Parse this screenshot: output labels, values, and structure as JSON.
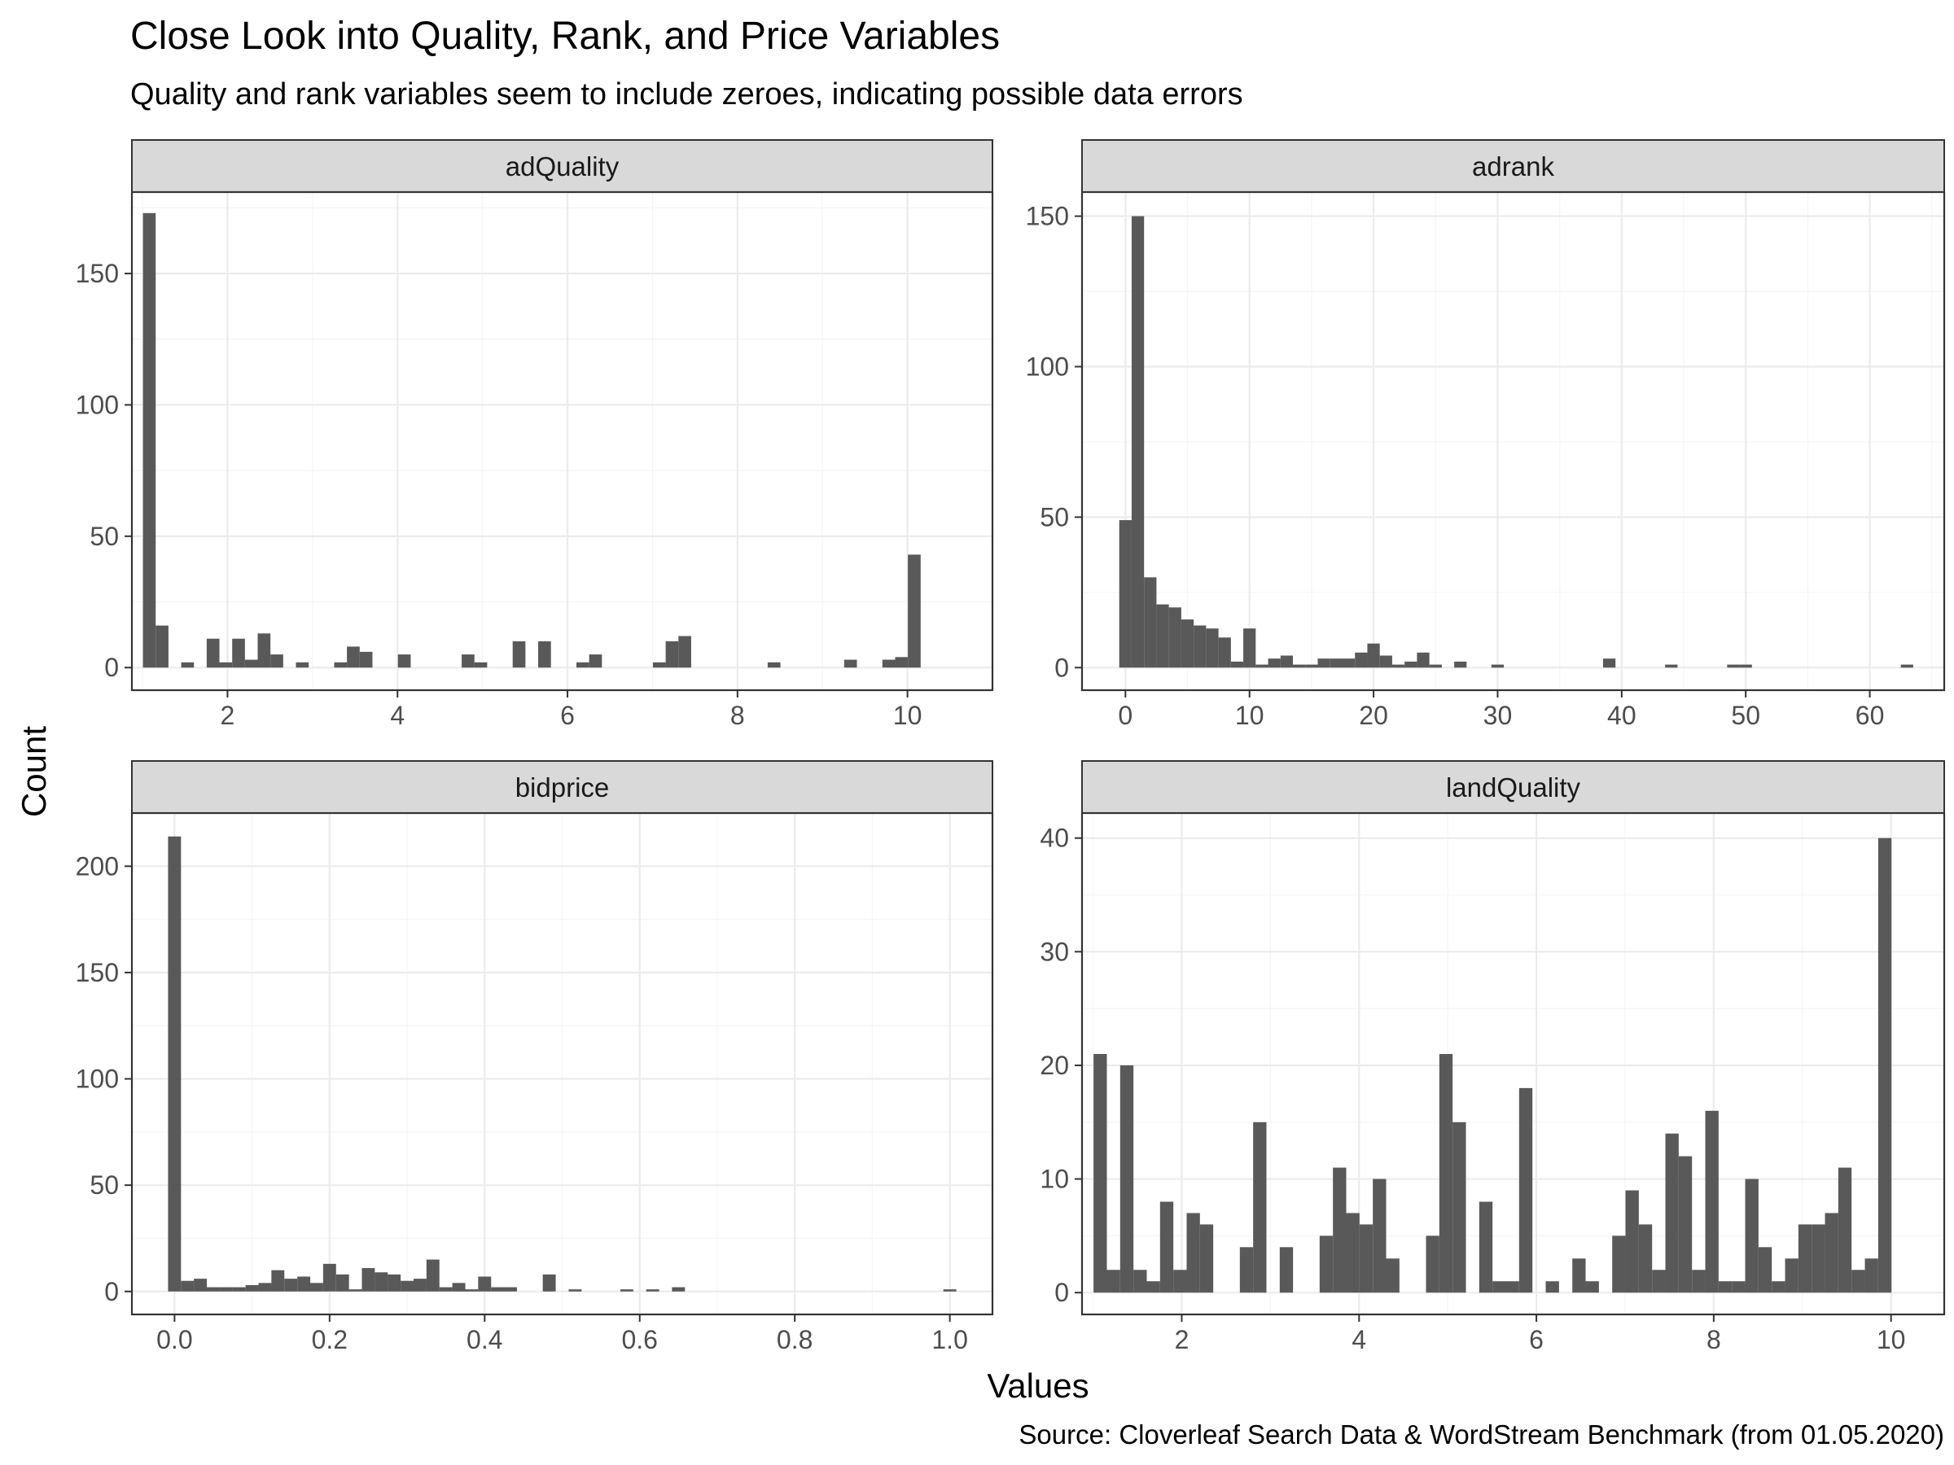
{
  "title": "Close Look into Quality, Rank, and Price Variables",
  "subtitle": "Quality and rank variables seem to include zeroes, indicating possible data errors",
  "caption": "Source: Cloverleaf Search Data & WordStream Benchmark (from 01.05.2020)",
  "xlabel": "Values",
  "ylabel": "Count",
  "colors": {
    "bar": "#595959",
    "strip_fill": "#d9d9d9",
    "grid_major": "#ebebeb",
    "grid_minor": "#f5f5f5",
    "border": "#333333"
  },
  "chart_data": [
    {
      "type": "bar",
      "facet": "adQuality",
      "xlim": [
        0.875,
        11.0
      ],
      "ylim": [
        -8.6,
        181
      ],
      "xticks": [
        2,
        4,
        6,
        8,
        10
      ],
      "xtick_labels": [
        "2",
        "4",
        "6",
        "8",
        "10"
      ],
      "yticks": [
        0,
        50,
        100,
        150
      ],
      "ytick_labels": [
        "0",
        "50",
        "100",
        "150"
      ],
      "bin_width": 0.15,
      "bins": [
        {
          "x": 1.08,
          "count": 173
        },
        {
          "x": 1.23,
          "count": 16
        },
        {
          "x": 1.53,
          "count": 2
        },
        {
          "x": 1.83,
          "count": 11
        },
        {
          "x": 1.98,
          "count": 2
        },
        {
          "x": 2.13,
          "count": 11
        },
        {
          "x": 2.28,
          "count": 3
        },
        {
          "x": 2.43,
          "count": 13
        },
        {
          "x": 2.58,
          "count": 5
        },
        {
          "x": 2.88,
          "count": 2
        },
        {
          "x": 3.33,
          "count": 2
        },
        {
          "x": 3.48,
          "count": 8
        },
        {
          "x": 3.63,
          "count": 6
        },
        {
          "x": 4.08,
          "count": 5
        },
        {
          "x": 4.83,
          "count": 5
        },
        {
          "x": 4.98,
          "count": 2
        },
        {
          "x": 5.43,
          "count": 10
        },
        {
          "x": 5.73,
          "count": 10
        },
        {
          "x": 6.18,
          "count": 2
        },
        {
          "x": 6.33,
          "count": 5
        },
        {
          "x": 7.08,
          "count": 2
        },
        {
          "x": 7.23,
          "count": 10
        },
        {
          "x": 7.38,
          "count": 12
        },
        {
          "x": 8.43,
          "count": 2
        },
        {
          "x": 9.33,
          "count": 3
        },
        {
          "x": 9.78,
          "count": 3
        },
        {
          "x": 9.93,
          "count": 4
        },
        {
          "x": 10.08,
          "count": 43
        }
      ]
    },
    {
      "type": "bar",
      "facet": "adrank",
      "xlim": [
        -3.5,
        66
      ],
      "ylim": [
        -7.5,
        158
      ],
      "xticks": [
        0,
        10,
        20,
        30,
        40,
        50,
        60
      ],
      "xtick_labels": [
        "0",
        "10",
        "20",
        "30",
        "40",
        "50",
        "60"
      ],
      "yticks": [
        0,
        50,
        100,
        150
      ],
      "ytick_labels": [
        "0",
        "50",
        "100",
        "150"
      ],
      "bin_width": 1.0,
      "bins": [
        {
          "x": 0,
          "count": 49
        },
        {
          "x": 1,
          "count": 150
        },
        {
          "x": 2,
          "count": 30
        },
        {
          "x": 3,
          "count": 21
        },
        {
          "x": 4,
          "count": 20
        },
        {
          "x": 5,
          "count": 16
        },
        {
          "x": 6,
          "count": 14
        },
        {
          "x": 7,
          "count": 13
        },
        {
          "x": 8,
          "count": 10
        },
        {
          "x": 9,
          "count": 2
        },
        {
          "x": 10,
          "count": 13
        },
        {
          "x": 11,
          "count": 1
        },
        {
          "x": 12,
          "count": 3
        },
        {
          "x": 13,
          "count": 4
        },
        {
          "x": 14,
          "count": 1
        },
        {
          "x": 15,
          "count": 1
        },
        {
          "x": 16,
          "count": 3
        },
        {
          "x": 17,
          "count": 3
        },
        {
          "x": 18,
          "count": 3
        },
        {
          "x": 19,
          "count": 5
        },
        {
          "x": 20,
          "count": 8
        },
        {
          "x": 21,
          "count": 4
        },
        {
          "x": 22,
          "count": 1
        },
        {
          "x": 23,
          "count": 2
        },
        {
          "x": 24,
          "count": 5
        },
        {
          "x": 25,
          "count": 1
        },
        {
          "x": 27,
          "count": 2
        },
        {
          "x": 30,
          "count": 1
        },
        {
          "x": 39,
          "count": 3
        },
        {
          "x": 44,
          "count": 1
        },
        {
          "x": 49,
          "count": 1
        },
        {
          "x": 50,
          "count": 1
        },
        {
          "x": 63,
          "count": 1
        }
      ]
    },
    {
      "type": "bar",
      "facet": "bidprice",
      "xlim": [
        -0.055,
        1.055
      ],
      "ylim": [
        -10.8,
        225
      ],
      "xticks": [
        0.0,
        0.2,
        0.4,
        0.6,
        0.8,
        1.0
      ],
      "xtick_labels": [
        "0.0",
        "0.2",
        "0.4",
        "0.6",
        "0.8",
        "1.0"
      ],
      "yticks": [
        0,
        50,
        100,
        150,
        200
      ],
      "ytick_labels": [
        "0",
        "50",
        "100",
        "150",
        "200"
      ],
      "bin_width": 0.0167,
      "bins": [
        {
          "x": 0.0,
          "count": 214
        },
        {
          "x": 0.0167,
          "count": 5
        },
        {
          "x": 0.0333,
          "count": 6
        },
        {
          "x": 0.05,
          "count": 2
        },
        {
          "x": 0.0667,
          "count": 2
        },
        {
          "x": 0.0833,
          "count": 2
        },
        {
          "x": 0.1,
          "count": 3
        },
        {
          "x": 0.1167,
          "count": 4
        },
        {
          "x": 0.1333,
          "count": 10
        },
        {
          "x": 0.15,
          "count": 6
        },
        {
          "x": 0.1667,
          "count": 7
        },
        {
          "x": 0.1833,
          "count": 4
        },
        {
          "x": 0.2,
          "count": 13
        },
        {
          "x": 0.2167,
          "count": 8
        },
        {
          "x": 0.2333,
          "count": 1
        },
        {
          "x": 0.25,
          "count": 11
        },
        {
          "x": 0.2667,
          "count": 9
        },
        {
          "x": 0.2833,
          "count": 8
        },
        {
          "x": 0.3,
          "count": 5
        },
        {
          "x": 0.3167,
          "count": 6
        },
        {
          "x": 0.3333,
          "count": 15
        },
        {
          "x": 0.35,
          "count": 2
        },
        {
          "x": 0.3667,
          "count": 4
        },
        {
          "x": 0.3833,
          "count": 1
        },
        {
          "x": 0.4,
          "count": 7
        },
        {
          "x": 0.4167,
          "count": 2
        },
        {
          "x": 0.4333,
          "count": 2
        },
        {
          "x": 0.4833,
          "count": 8
        },
        {
          "x": 0.5167,
          "count": 1
        },
        {
          "x": 0.5833,
          "count": 1
        },
        {
          "x": 0.6167,
          "count": 1
        },
        {
          "x": 0.65,
          "count": 2
        },
        {
          "x": 1.0,
          "count": 1
        }
      ]
    },
    {
      "type": "bar",
      "facet": "landQuality",
      "xlim": [
        0.875,
        10.6
      ],
      "ylim": [
        -1.92,
        42.2
      ],
      "xticks": [
        2,
        4,
        6,
        8,
        10
      ],
      "xtick_labels": [
        "2",
        "4",
        "6",
        "8",
        "10"
      ],
      "yticks": [
        0,
        10,
        20,
        30,
        40
      ],
      "ytick_labels": [
        "0",
        "10",
        "20",
        "30",
        "40"
      ],
      "bin_width": 0.15,
      "bins": [
        {
          "x": 1.08,
          "count": 21
        },
        {
          "x": 1.23,
          "count": 2
        },
        {
          "x": 1.38,
          "count": 20
        },
        {
          "x": 1.53,
          "count": 2
        },
        {
          "x": 1.68,
          "count": 1
        },
        {
          "x": 1.83,
          "count": 8
        },
        {
          "x": 1.98,
          "count": 2
        },
        {
          "x": 2.13,
          "count": 7
        },
        {
          "x": 2.28,
          "count": 6
        },
        {
          "x": 2.73,
          "count": 4
        },
        {
          "x": 2.88,
          "count": 15
        },
        {
          "x": 3.18,
          "count": 4
        },
        {
          "x": 3.63,
          "count": 5
        },
        {
          "x": 3.78,
          "count": 11
        },
        {
          "x": 3.93,
          "count": 7
        },
        {
          "x": 4.08,
          "count": 6
        },
        {
          "x": 4.23,
          "count": 10
        },
        {
          "x": 4.38,
          "count": 3
        },
        {
          "x": 4.83,
          "count": 5
        },
        {
          "x": 4.98,
          "count": 21
        },
        {
          "x": 5.13,
          "count": 15
        },
        {
          "x": 5.43,
          "count": 8
        },
        {
          "x": 5.58,
          "count": 1
        },
        {
          "x": 5.73,
          "count": 1
        },
        {
          "x": 5.88,
          "count": 18
        },
        {
          "x": 6.18,
          "count": 1
        },
        {
          "x": 6.48,
          "count": 3
        },
        {
          "x": 6.63,
          "count": 1
        },
        {
          "x": 6.93,
          "count": 5
        },
        {
          "x": 7.08,
          "count": 9
        },
        {
          "x": 7.23,
          "count": 6
        },
        {
          "x": 7.38,
          "count": 2
        },
        {
          "x": 7.53,
          "count": 14
        },
        {
          "x": 7.68,
          "count": 12
        },
        {
          "x": 7.83,
          "count": 2
        },
        {
          "x": 7.98,
          "count": 16
        },
        {
          "x": 8.13,
          "count": 1
        },
        {
          "x": 8.28,
          "count": 1
        },
        {
          "x": 8.43,
          "count": 10
        },
        {
          "x": 8.58,
          "count": 4
        },
        {
          "x": 8.73,
          "count": 1
        },
        {
          "x": 8.88,
          "count": 3
        },
        {
          "x": 9.03,
          "count": 6
        },
        {
          "x": 9.18,
          "count": 6
        },
        {
          "x": 9.33,
          "count": 7
        },
        {
          "x": 9.48,
          "count": 11
        },
        {
          "x": 9.63,
          "count": 2
        },
        {
          "x": 9.78,
          "count": 3
        },
        {
          "x": 9.93,
          "count": 40
        }
      ]
    }
  ]
}
